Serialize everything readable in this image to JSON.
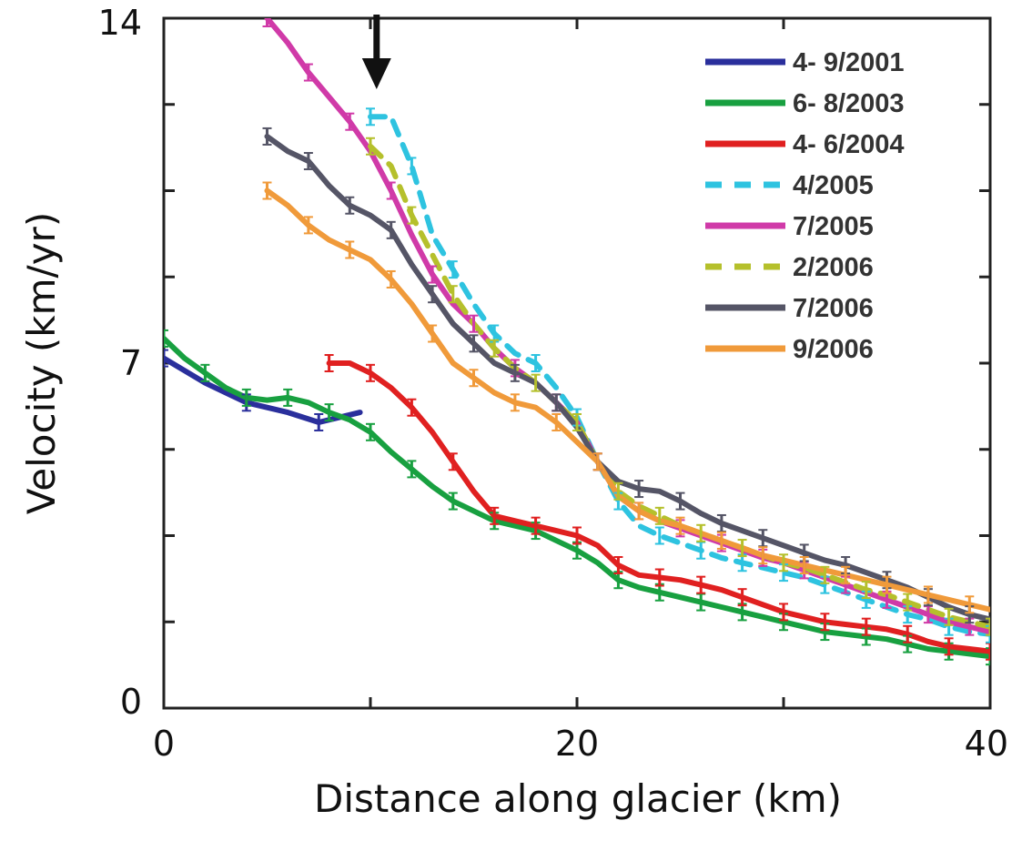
{
  "chart_data": {
    "type": "line",
    "title": "",
    "xlabel": "Distance along glacier (km)",
    "ylabel": "Velocity (km/yr)",
    "xlim": [
      0,
      40
    ],
    "ylim": [
      0,
      14
    ],
    "x_ticks": [
      0,
      20,
      40
    ],
    "y_ticks": [
      0,
      7,
      14
    ],
    "x_tick_labels": [
      "0",
      "20",
      "40"
    ],
    "y_tick_labels": [
      "0",
      "7",
      "14"
    ],
    "grid": false,
    "legend_position": "top-right",
    "annotations": [
      {
        "type": "arrow-down",
        "x": 10.3
      }
    ],
    "series": [
      {
        "name": "4- 9/2001",
        "color": "#2a2f9c",
        "dash": false,
        "x": [
          0,
          2,
          4,
          6,
          7.5,
          9.5
        ],
        "y": [
          7.1,
          6.6,
          6.2,
          6.0,
          5.8,
          6.0
        ]
      },
      {
        "name": "6- 8/2003",
        "color": "#18a040",
        "dash": false,
        "x": [
          0,
          1,
          2,
          3,
          4,
          5,
          6,
          7,
          8,
          9,
          10,
          11,
          12,
          13,
          14,
          15,
          16,
          17,
          18,
          19,
          20,
          21,
          22,
          23,
          24,
          25,
          26,
          27,
          28,
          29,
          30,
          31,
          32,
          33,
          34,
          35,
          36,
          37,
          38,
          39,
          40
        ],
        "y": [
          7.5,
          7.1,
          6.8,
          6.5,
          6.3,
          6.25,
          6.3,
          6.2,
          6.0,
          5.85,
          5.6,
          5.2,
          4.85,
          4.5,
          4.2,
          4.0,
          3.8,
          3.7,
          3.6,
          3.4,
          3.2,
          2.95,
          2.6,
          2.45,
          2.35,
          2.25,
          2.15,
          2.05,
          1.95,
          1.85,
          1.75,
          1.65,
          1.55,
          1.5,
          1.45,
          1.4,
          1.3,
          1.2,
          1.15,
          1.1,
          1.05
        ]
      },
      {
        "name": "4- 6/2004",
        "color": "#e02020",
        "dash": false,
        "x": [
          8,
          9,
          10,
          11,
          12,
          13,
          14,
          15,
          16,
          17,
          18,
          19,
          20,
          21,
          22,
          23,
          24,
          25,
          26,
          27,
          28,
          29,
          30,
          31,
          32,
          33,
          34,
          35,
          36,
          37,
          38,
          39,
          40
        ],
        "y": [
          7.0,
          7.0,
          6.8,
          6.5,
          6.1,
          5.6,
          5.0,
          4.4,
          3.9,
          3.8,
          3.7,
          3.6,
          3.5,
          3.3,
          2.9,
          2.7,
          2.65,
          2.6,
          2.5,
          2.4,
          2.25,
          2.1,
          1.95,
          1.85,
          1.75,
          1.7,
          1.65,
          1.6,
          1.5,
          1.35,
          1.25,
          1.2,
          1.15
        ]
      },
      {
        "name": "4/2005",
        "color": "#2ec3e0",
        "dash": true,
        "x": [
          10,
          11,
          12,
          13,
          14,
          15,
          16,
          17,
          18,
          19,
          20,
          21,
          22,
          23,
          24,
          25,
          26,
          27,
          28,
          29,
          30,
          31,
          32,
          33,
          34,
          35,
          36,
          37,
          38,
          39,
          40
        ],
        "y": [
          12.0,
          12.0,
          11.0,
          9.6,
          8.9,
          8.2,
          7.6,
          7.2,
          7.0,
          6.5,
          5.9,
          5.0,
          4.2,
          3.7,
          3.5,
          3.35,
          3.2,
          3.05,
          2.95,
          2.85,
          2.75,
          2.65,
          2.5,
          2.35,
          2.2,
          2.05,
          1.9,
          1.8,
          1.65,
          1.55,
          1.5
        ]
      },
      {
        "name": "7/2005",
        "color": "#d03aa8",
        "dash": false,
        "x": [
          5,
          6,
          7,
          8,
          9,
          10,
          11,
          12,
          13,
          14,
          15,
          16,
          17,
          18,
          19,
          20,
          21,
          22,
          23,
          24,
          25,
          26,
          27,
          28,
          29,
          30,
          31,
          32,
          33,
          34,
          35,
          36,
          37,
          38,
          39,
          40
        ],
        "y": [
          14.0,
          13.5,
          12.9,
          12.4,
          11.9,
          11.3,
          10.5,
          9.6,
          8.8,
          8.2,
          7.8,
          7.3,
          6.9,
          6.6,
          6.2,
          5.8,
          5.0,
          4.3,
          4.0,
          3.8,
          3.65,
          3.5,
          3.35,
          3.2,
          3.05,
          2.95,
          2.8,
          2.65,
          2.5,
          2.35,
          2.2,
          2.05,
          1.9,
          1.75,
          1.65,
          1.55
        ]
      },
      {
        "name": "2/2006",
        "color": "#b5c02c",
        "dash": true,
        "x": [
          10,
          11,
          12,
          13,
          14,
          15,
          16,
          17,
          18,
          19,
          20,
          21,
          22,
          23,
          24,
          25,
          26,
          27,
          28,
          29,
          30,
          31,
          32,
          33,
          34,
          35,
          36,
          37,
          38,
          39,
          40
        ],
        "y": [
          11.4,
          11.0,
          10.0,
          9.2,
          8.4,
          7.8,
          7.3,
          6.9,
          6.6,
          6.2,
          5.8,
          5.0,
          4.4,
          4.1,
          3.9,
          3.7,
          3.55,
          3.4,
          3.25,
          3.1,
          2.95,
          2.85,
          2.7,
          2.55,
          2.4,
          2.3,
          2.15,
          2.0,
          1.85,
          1.75,
          1.65
        ]
      },
      {
        "name": "7/2006",
        "color": "#555566",
        "dash": false,
        "x": [
          5,
          6,
          7,
          8,
          9,
          10,
          11,
          12,
          13,
          14,
          15,
          16,
          17,
          18,
          19,
          20,
          21,
          22,
          23,
          24,
          25,
          26,
          27,
          28,
          29,
          30,
          31,
          32,
          33,
          34,
          35,
          36,
          37,
          38,
          39,
          40
        ],
        "y": [
          11.6,
          11.3,
          11.1,
          10.6,
          10.2,
          10.0,
          9.7,
          9.0,
          8.4,
          7.8,
          7.4,
          7.0,
          6.8,
          6.6,
          6.2,
          5.7,
          5.0,
          4.6,
          4.45,
          4.4,
          4.2,
          3.95,
          3.75,
          3.6,
          3.45,
          3.3,
          3.15,
          3.0,
          2.9,
          2.75,
          2.6,
          2.45,
          2.25,
          2.05,
          1.9,
          1.8
        ]
      },
      {
        "name": "9/2006",
        "color": "#f09a3a",
        "dash": false,
        "x": [
          5,
          6,
          7,
          8,
          9,
          10,
          11,
          12,
          13,
          14,
          15,
          16,
          17,
          18,
          19,
          20,
          21,
          22,
          23,
          24,
          25,
          26,
          27,
          28,
          29,
          30,
          31,
          32,
          33,
          34,
          35,
          36,
          37,
          38,
          39,
          40
        ],
        "y": [
          10.5,
          10.2,
          9.8,
          9.5,
          9.3,
          9.1,
          8.7,
          8.2,
          7.6,
          7.0,
          6.7,
          6.4,
          6.2,
          6.1,
          5.8,
          5.4,
          5.0,
          4.3,
          4.0,
          3.8,
          3.7,
          3.55,
          3.4,
          3.25,
          3.1,
          3.0,
          2.9,
          2.8,
          2.7,
          2.6,
          2.5,
          2.4,
          2.3,
          2.2,
          2.1,
          2.0
        ]
      }
    ]
  }
}
